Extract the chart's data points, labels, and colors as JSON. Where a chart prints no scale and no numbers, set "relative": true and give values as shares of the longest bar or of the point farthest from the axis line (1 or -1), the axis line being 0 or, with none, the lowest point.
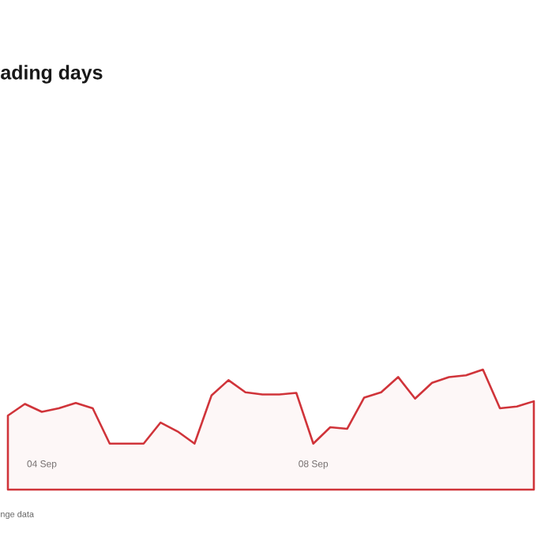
{
  "chart_data": {
    "type": "area",
    "title": "ading days",
    "relative": true,
    "color": "#d0343a",
    "categories": [
      null,
      null,
      "04 Sep",
      null,
      null,
      null,
      null,
      null,
      null,
      null,
      null,
      null,
      null,
      null,
      null,
      null,
      null,
      null,
      "08 Sep",
      null,
      null,
      null,
      null,
      null,
      null,
      null,
      null,
      null,
      null,
      null,
      null,
      null
    ],
    "values": [
      0.617,
      0.714,
      0.648,
      0.678,
      0.722,
      0.678,
      0.383,
      0.383,
      0.383,
      0.559,
      0.485,
      0.383,
      0.784,
      0.912,
      0.811,
      0.793,
      0.793,
      0.806,
      0.383,
      0.52,
      0.507,
      0.767,
      0.811,
      0.938,
      0.758,
      0.89,
      0.938,
      0.952,
      1,
      0.678,
      0.692,
      0.736
    ],
    "annotations": [
      "nge data"
    ],
    "marker": "none"
  }
}
